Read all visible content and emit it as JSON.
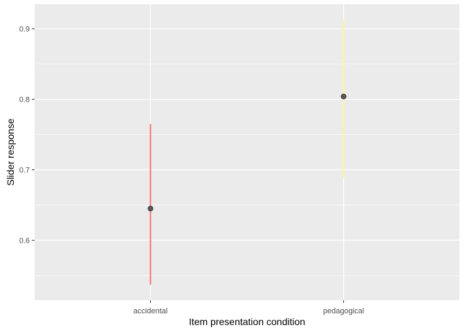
{
  "chart_data": {
    "type": "scatter",
    "xlabel": "Item presentation condition",
    "ylabel": "Slider response",
    "categories": [
      "accidental",
      "pedagogical"
    ],
    "points": [
      {
        "category": "accidental",
        "y": 0.645,
        "ymin": 0.537,
        "ymax": 0.765,
        "color": "#F8766D"
      },
      {
        "category": "pedagogical",
        "y": 0.804,
        "ymin": 0.689,
        "ymax": 0.913,
        "color": "#FFF68F"
      }
    ],
    "yticks": [
      0.6,
      0.7,
      0.8,
      0.9
    ],
    "ytick_labels": [
      "0.6",
      "0.7",
      "0.8",
      "0.9"
    ],
    "ylim": [
      0.515,
      0.935
    ],
    "grid": true,
    "legend": "none",
    "colors": {
      "panel_background": "#EBEBEB",
      "grid_line": "#FFFFFF",
      "point_fill": "#595959",
      "point_stroke": "#333333"
    }
  }
}
